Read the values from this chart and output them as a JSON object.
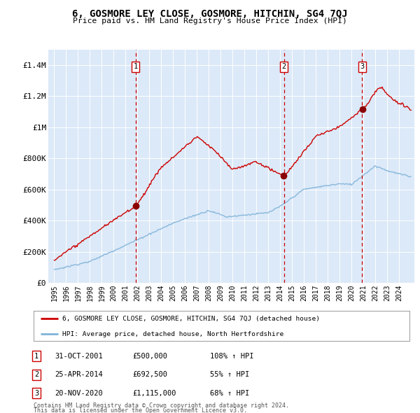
{
  "title": "6, GOSMORE LEY CLOSE, GOSMORE, HITCHIN, SG4 7QJ",
  "subtitle": "Price paid vs. HM Land Registry's House Price Index (HPI)",
  "legend_line1": "6, GOSMORE LEY CLOSE, GOSMORE, HITCHIN, SG4 7QJ (detached house)",
  "legend_line2": "HPI: Average price, detached house, North Hertfordshire",
  "footnote1": "Contains HM Land Registry data © Crown copyright and database right 2024.",
  "footnote2": "This data is licensed under the Open Government Licence v3.0.",
  "sales": [
    {
      "num": 1,
      "date_str": "31-OCT-2001",
      "price_str": "£500,000",
      "pct_str": "108% ↑ HPI",
      "date_x": 2001.83,
      "price": 500000
    },
    {
      "num": 2,
      "date_str": "25-APR-2014",
      "price_str": "£692,500",
      "pct_str": "55% ↑ HPI",
      "date_x": 2014.32,
      "price": 692500
    },
    {
      "num": 3,
      "date_str": "20-NOV-2020",
      "price_str": "£1,115,000",
      "pct_str": "68% ↑ HPI",
      "date_x": 2020.89,
      "price": 1115000
    }
  ],
  "background_color": "#dce9f8",
  "red_line_color": "#cc0000",
  "blue_line_color": "#7fb3d9",
  "vline_color": "#cc0000",
  "grid_color": "#ffffff",
  "ylim": [
    0,
    1500000
  ],
  "xlim_start": 1994.5,
  "xlim_end": 2025.3,
  "yticks": [
    0,
    200000,
    400000,
    600000,
    800000,
    1000000,
    1200000,
    1400000
  ],
  "ytick_labels": [
    "£0",
    "£200K",
    "£400K",
    "£600K",
    "£800K",
    "£1M",
    "£1.2M",
    "£1.4M"
  ],
  "xticks": [
    1995,
    1996,
    1997,
    1998,
    1999,
    2000,
    2001,
    2002,
    2003,
    2004,
    2005,
    2006,
    2007,
    2008,
    2009,
    2010,
    2011,
    2012,
    2013,
    2014,
    2015,
    2016,
    2017,
    2018,
    2019,
    2020,
    2021,
    2022,
    2023,
    2024
  ]
}
